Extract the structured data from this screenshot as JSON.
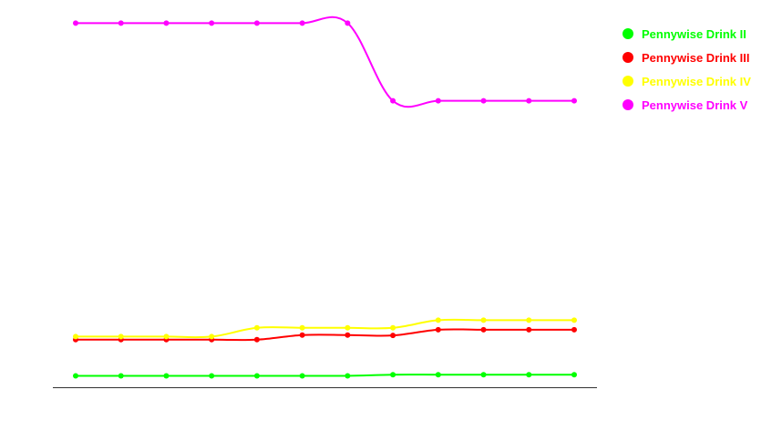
{
  "chart_data": {
    "type": "line",
    "title": "",
    "xlabel": "",
    "ylabel": "",
    "x": [
      1,
      2,
      3,
      4,
      5,
      6,
      7,
      8,
      9,
      10,
      11,
      12
    ],
    "ylim": [
      0,
      100
    ],
    "grid": false,
    "legend_position": "top-right",
    "series": [
      {
        "name": "Pennywise Drink II",
        "color": "#00ff00",
        "values": [
          3.0,
          3.0,
          3.0,
          3.0,
          3.0,
          3.0,
          3.0,
          3.3,
          3.3,
          3.3,
          3.3,
          3.3
        ]
      },
      {
        "name": "Pennywise Drink III",
        "color": "#ff0000",
        "values": [
          12.5,
          12.5,
          12.5,
          12.5,
          12.5,
          13.7,
          13.7,
          13.6,
          15.1,
          15.1,
          15.1,
          15.1
        ]
      },
      {
        "name": "Pennywise Drink IV",
        "color": "#ffff00",
        "values": [
          13.3,
          13.3,
          13.3,
          13.3,
          15.6,
          15.6,
          15.6,
          15.6,
          17.6,
          17.6,
          17.6,
          17.6
        ]
      },
      {
        "name": "Pennywise Drink V",
        "color": "#ff00ff",
        "values": [
          95.6,
          95.6,
          95.6,
          95.6,
          95.6,
          95.6,
          95.6,
          75.2,
          75.2,
          75.2,
          75.2,
          75.2
        ]
      }
    ]
  }
}
